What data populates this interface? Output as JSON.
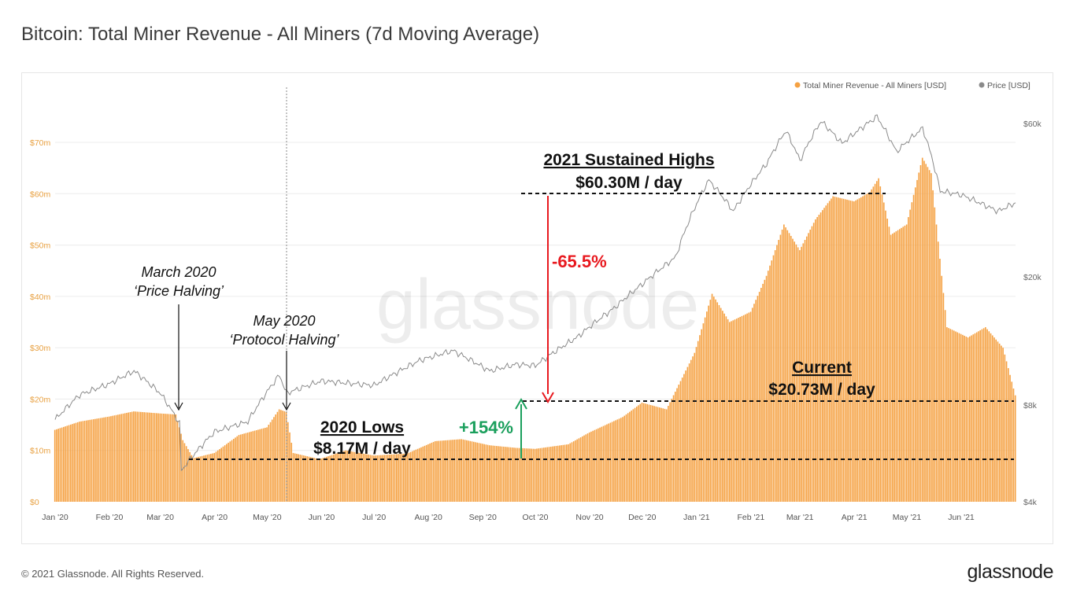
{
  "page": {
    "title": "Bitcoin: Total Miner Revenue - All Miners (7d Moving Average)",
    "copyright": "© 2021 Glassnode. All Rights Reserved.",
    "logo": "glassnode",
    "watermark": "glassnode"
  },
  "colors": {
    "revenue": "#f5a142",
    "price": "#8a8a8a",
    "negative": "#e8191f",
    "positive": "#1a9f5c",
    "left_axis": "#e8a041"
  },
  "chart_data": {
    "type": "bar",
    "title": "Bitcoin: Total Miner Revenue - All Miners (7d Moving Average)",
    "legend_position": "top-right",
    "grid": "horizontal",
    "x": {
      "type": "date",
      "range": [
        "2020-01-01",
        "2021-07-02"
      ],
      "tick_labels": [
        {
          "date": "2020-01-01",
          "label": "Jan '20"
        },
        {
          "date": "2020-02-01",
          "label": "Feb '20"
        },
        {
          "date": "2020-03-01",
          "label": "Mar '20"
        },
        {
          "date": "2020-04-01",
          "label": "Apr '20"
        },
        {
          "date": "2020-05-01",
          "label": "May '20"
        },
        {
          "date": "2020-06-01",
          "label": "Jun '20"
        },
        {
          "date": "2020-07-01",
          "label": "Jul '20"
        },
        {
          "date": "2020-08-01",
          "label": "Aug '20"
        },
        {
          "date": "2020-09-01",
          "label": "Sep '20"
        },
        {
          "date": "2020-10-01",
          "label": "Oct '20"
        },
        {
          "date": "2020-11-01",
          "label": "Nov '20"
        },
        {
          "date": "2020-12-01",
          "label": "Dec '20"
        },
        {
          "date": "2021-01-01",
          "label": "Jan '21"
        },
        {
          "date": "2021-02-01",
          "label": "Feb '21"
        },
        {
          "date": "2021-03-01",
          "label": "Mar '21"
        },
        {
          "date": "2021-04-01",
          "label": "Apr '21"
        },
        {
          "date": "2021-05-01",
          "label": "May '21"
        },
        {
          "date": "2021-06-01",
          "label": "Jun '21"
        }
      ]
    },
    "y_left": {
      "unit": "USD",
      "range": [
        0,
        70000000
      ],
      "tick_labels": [
        {
          "value": 0,
          "label": "$0"
        },
        {
          "value": 10000000,
          "label": "$10m"
        },
        {
          "value": 20000000,
          "label": "$20m"
        },
        {
          "value": 30000000,
          "label": "$30m"
        },
        {
          "value": 40000000,
          "label": "$40m"
        },
        {
          "value": 50000000,
          "label": "$50m"
        },
        {
          "value": 60000000,
          "label": "$60m"
        },
        {
          "value": 70000000,
          "label": "$70m"
        }
      ]
    },
    "y_right": {
      "unit": "USD",
      "scale": "log",
      "tick_labels": [
        {
          "value": 4000,
          "label": "$4k"
        },
        {
          "value": 8000,
          "label": "$8k"
        },
        {
          "value": 20000,
          "label": "$20k"
        },
        {
          "value": 60000,
          "label": "$60k"
        }
      ]
    },
    "series": [
      {
        "name": "Total Miner Revenue - All Miners [USD]",
        "type": "bar",
        "axis": "left",
        "points": [
          [
            "2020-01-01",
            14000000
          ],
          [
            "2020-01-15",
            15600000
          ],
          [
            "2020-02-01",
            16600000
          ],
          [
            "2020-02-15",
            17600000
          ],
          [
            "2020-03-01",
            17200000
          ],
          [
            "2020-03-10",
            17000000
          ],
          [
            "2020-03-14",
            12000000
          ],
          [
            "2020-03-20",
            8500000
          ],
          [
            "2020-04-01",
            9500000
          ],
          [
            "2020-04-15",
            13000000
          ],
          [
            "2020-05-01",
            14500000
          ],
          [
            "2020-05-08",
            18000000
          ],
          [
            "2020-05-12",
            17500000
          ],
          [
            "2020-05-16",
            9500000
          ],
          [
            "2020-05-31",
            8300000
          ],
          [
            "2020-06-15",
            10000000
          ],
          [
            "2020-07-01",
            9000000
          ],
          [
            "2020-07-20",
            9400000
          ],
          [
            "2020-08-05",
            11800000
          ],
          [
            "2020-08-20",
            12200000
          ],
          [
            "2020-09-05",
            11000000
          ],
          [
            "2020-09-20",
            10500000
          ],
          [
            "2020-10-01",
            10300000
          ],
          [
            "2020-10-20",
            11200000
          ],
          [
            "2020-11-01",
            13500000
          ],
          [
            "2020-11-20",
            16500000
          ],
          [
            "2020-12-01",
            19300000
          ],
          [
            "2020-12-15",
            18000000
          ],
          [
            "2020-12-31",
            29000000
          ],
          [
            "2021-01-10",
            40500000
          ],
          [
            "2021-01-20",
            35000000
          ],
          [
            "2021-02-01",
            37000000
          ],
          [
            "2021-02-10",
            44000000
          ],
          [
            "2021-02-20",
            54000000
          ],
          [
            "2021-03-01",
            49000000
          ],
          [
            "2021-03-10",
            55000000
          ],
          [
            "2021-03-20",
            59500000
          ],
          [
            "2021-04-01",
            58500000
          ],
          [
            "2021-04-10",
            60300000
          ],
          [
            "2021-04-15",
            63000000
          ],
          [
            "2021-04-22",
            52000000
          ],
          [
            "2021-05-01",
            54000000
          ],
          [
            "2021-05-10",
            67000000
          ],
          [
            "2021-05-15",
            64000000
          ],
          [
            "2021-05-24",
            34000000
          ],
          [
            "2021-06-05",
            32000000
          ],
          [
            "2021-06-15",
            34000000
          ],
          [
            "2021-06-25",
            30000000
          ],
          [
            "2021-07-02",
            20730000
          ]
        ]
      },
      {
        "name": "Price [USD]",
        "type": "line",
        "axis": "right",
        "points": [
          [
            "2020-01-01",
            7200
          ],
          [
            "2020-01-15",
            8600
          ],
          [
            "2020-02-01",
            9300
          ],
          [
            "2020-02-15",
            10200
          ],
          [
            "2020-03-01",
            8700
          ],
          [
            "2020-03-12",
            7000
          ],
          [
            "2020-03-13",
            5000
          ],
          [
            "2020-04-01",
            6600
          ],
          [
            "2020-04-20",
            7100
          ],
          [
            "2020-05-01",
            8800
          ],
          [
            "2020-05-08",
            9900
          ],
          [
            "2020-05-12",
            8700
          ],
          [
            "2020-06-01",
            9500
          ],
          [
            "2020-07-01",
            9200
          ],
          [
            "2020-07-27",
            11000
          ],
          [
            "2020-08-15",
            11800
          ],
          [
            "2020-09-05",
            10200
          ],
          [
            "2020-09-20",
            10700
          ],
          [
            "2020-10-01",
            10600
          ],
          [
            "2020-10-25",
            13000
          ],
          [
            "2020-11-15",
            16000
          ],
          [
            "2020-12-01",
            19000
          ],
          [
            "2020-12-20",
            23000
          ],
          [
            "2021-01-08",
            40000
          ],
          [
            "2021-01-22",
            32000
          ],
          [
            "2021-02-10",
            45000
          ],
          [
            "2021-02-21",
            57000
          ],
          [
            "2021-03-01",
            46000
          ],
          [
            "2021-03-13",
            61000
          ],
          [
            "2021-03-25",
            52000
          ],
          [
            "2021-04-14",
            63000
          ],
          [
            "2021-04-25",
            49000
          ],
          [
            "2021-05-10",
            58000
          ],
          [
            "2021-05-20",
            37000
          ],
          [
            "2021-06-01",
            36000
          ],
          [
            "2021-06-22",
            32000
          ],
          [
            "2021-07-02",
            34000
          ]
        ]
      }
    ],
    "annotations": {
      "march_halving": {
        "line1": "March 2020",
        "line2": "‘Price Halving’",
        "date": "2020-03-12"
      },
      "may_halving": {
        "line1": "May 2020",
        "line2": "‘Protocol Halving’",
        "date": "2020-05-11"
      },
      "lows": {
        "line1": "2020 Lows",
        "line2": "$8.17M / day",
        "value": 8170000
      },
      "highs": {
        "line1": "2021 Sustained Highs",
        "line2": "$60.30M / day",
        "value": 60300000
      },
      "current": {
        "line1": "Current",
        "line2": "$20.73M / day",
        "value": 20730000
      },
      "change_down": "-65.5%",
      "change_up": "+154%"
    }
  }
}
